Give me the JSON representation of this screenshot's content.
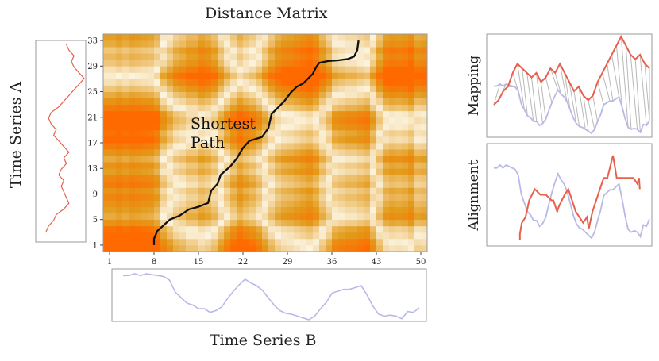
{
  "title": "Distance Matrix",
  "labels": {
    "series_a": "Time Series A",
    "series_b": "Time Series B",
    "mapping": "Mapping",
    "alignment": "Alignment",
    "annotation_line1": "Shortest",
    "annotation_line2": "Path"
  },
  "colors": {
    "series_a": "#e8604c",
    "series_b": "#b9b9e8",
    "path": "#111111",
    "matrix_low": "#fbf3de",
    "matrix_mid": "#e39a1a",
    "matrix_high": "#ff6a00",
    "mapping_lines": "#b8b8b8"
  },
  "chart_data": {
    "type": "heatmap",
    "title": "Distance Matrix",
    "x_ticks": [
      1,
      8,
      15,
      22,
      29,
      36,
      43,
      50
    ],
    "y_ticks": [
      1,
      5,
      9,
      13,
      17,
      21,
      25,
      29,
      33
    ],
    "xlim": [
      0,
      51
    ],
    "ylim": [
      0,
      34
    ],
    "series_a": [
      2,
      3,
      5,
      6,
      9,
      11,
      10,
      9,
      8,
      9,
      7,
      8,
      10,
      9,
      11,
      9,
      7,
      5,
      6,
      4,
      3,
      4,
      7,
      9,
      11,
      13,
      15,
      17,
      15,
      13,
      12,
      13,
      11,
      10
    ],
    "series_b": [
      5,
      5,
      5.2,
      5,
      5.2,
      5.1,
      5,
      4.9,
      4.5,
      3.2,
      2.6,
      2.0,
      1.8,
      1.4,
      1.4,
      1.0,
      1.2,
      1.6,
      2.5,
      3.3,
      4.0,
      4.6,
      4.2,
      3.9,
      3.4,
      2.6,
      1.8,
      1.2,
      0.9,
      0.8,
      0.6,
      0.4,
      0.2,
      0.6,
      1.4,
      2.1,
      3.1,
      3.3,
      3.5,
      3.5,
      3.7,
      3.9,
      2.9,
      1.7,
      0.8,
      0.6,
      0.7,
      0.6,
      0.3,
      1.1,
      1.0,
      1.5
    ],
    "path": [
      [
        8,
        1
      ],
      [
        8,
        2
      ],
      [
        8.5,
        3.2
      ],
      [
        9.5,
        4.1
      ],
      [
        10.5,
        5
      ],
      [
        12,
        5.6
      ],
      [
        13.5,
        6.6
      ],
      [
        15,
        7
      ],
      [
        16.5,
        7.6
      ],
      [
        17,
        9.5
      ],
      [
        18,
        10.6
      ],
      [
        18.5,
        12
      ],
      [
        20,
        13.3
      ],
      [
        21,
        14.5
      ],
      [
        22,
        16.2
      ],
      [
        23,
        17.3
      ],
      [
        25,
        17.9
      ],
      [
        26,
        19.3
      ],
      [
        26.5,
        21.5
      ],
      [
        27.5,
        22.5
      ],
      [
        28.5,
        23.5
      ],
      [
        29.5,
        24.8
      ],
      [
        30.5,
        25.8
      ],
      [
        31.5,
        26.3
      ],
      [
        33,
        27.8
      ],
      [
        33.5,
        28.8
      ],
      [
        34,
        29.5
      ],
      [
        35.5,
        29.8
      ],
      [
        37,
        29.9
      ],
      [
        38.5,
        30.1
      ],
      [
        39.5,
        30.5
      ],
      [
        40,
        31.5
      ],
      [
        40.2,
        33
      ]
    ]
  }
}
